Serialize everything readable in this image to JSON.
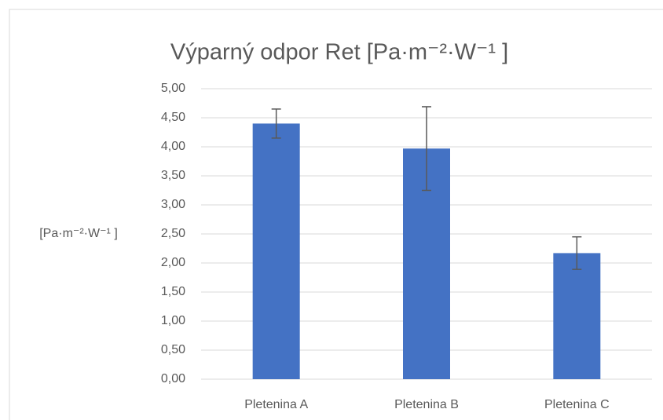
{
  "chart_data": {
    "type": "bar",
    "title": "Výparný odpor Ret [Pa·m⁻²·W⁻¹ ]",
    "y_label": "[Pa·m⁻²·W⁻¹ ]",
    "categories": [
      "Pletenina A",
      "Pletenina B",
      "Pletenina C"
    ],
    "values": [
      4.4,
      3.97,
      2.17
    ],
    "errors": [
      0.25,
      0.72,
      0.28
    ],
    "color": "#4472c4",
    "error_color": "#595959",
    "ylim": [
      0,
      5
    ],
    "yticks": [
      {
        "value": 0,
        "label": "0,00"
      },
      {
        "value": 0.5,
        "label": "0,50"
      },
      {
        "value": 1,
        "label": "1,00"
      },
      {
        "value": 1.5,
        "label": "1,50"
      },
      {
        "value": 2,
        "label": "2,00"
      },
      {
        "value": 2.5,
        "label": "2,50"
      },
      {
        "value": 3,
        "label": "3,00"
      },
      {
        "value": 3.5,
        "label": "3,50"
      },
      {
        "value": 4,
        "label": "4,00"
      },
      {
        "value": 4.5,
        "label": "4,50"
      },
      {
        "value": 5,
        "label": "5,00"
      }
    ],
    "grid": true
  }
}
